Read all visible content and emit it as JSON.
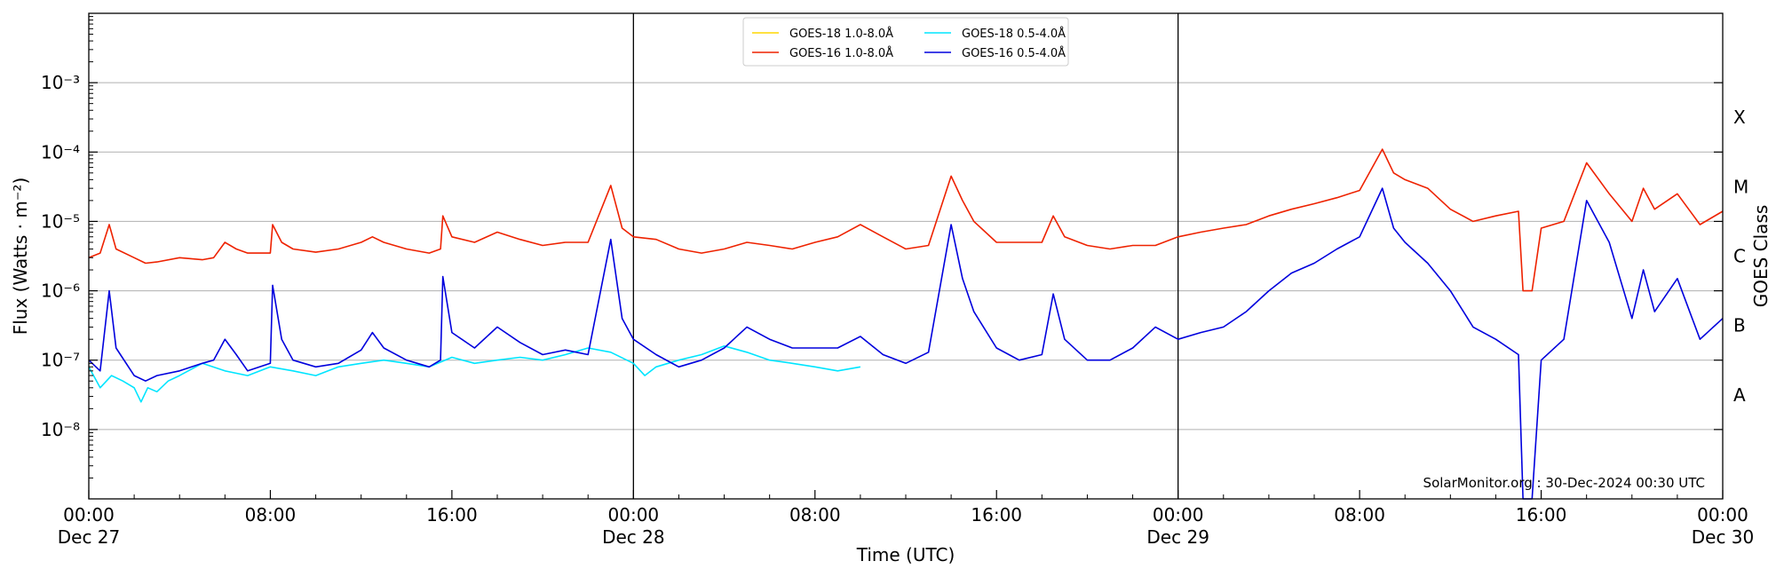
{
  "chart_data": {
    "type": "line",
    "title": "",
    "xlabel": "Time (UTC)",
    "ylabel": "Flux (Watts · m⁻²)",
    "ylabel_right": "GOES Class",
    "credit": "SolarMonitor.org : 30-Dec-2024 00:30 UTC",
    "x_range_hours": [
      0,
      72
    ],
    "x_unit": "hours since 27-Dec-2024 00:00 UTC",
    "ylim": [
      1e-09,
      0.01
    ],
    "yscale": "log",
    "grid": "horizontal at decades",
    "day_lines_hours": [
      24,
      48
    ],
    "x_ticks": [
      {
        "h": 0,
        "time": "00:00",
        "date": "Dec 27"
      },
      {
        "h": 8,
        "time": "08:00",
        "date": ""
      },
      {
        "h": 16,
        "time": "16:00",
        "date": ""
      },
      {
        "h": 24,
        "time": "00:00",
        "date": "Dec 28"
      },
      {
        "h": 32,
        "time": "08:00",
        "date": ""
      },
      {
        "h": 40,
        "time": "16:00",
        "date": ""
      },
      {
        "h": 48,
        "time": "00:00",
        "date": "Dec 29"
      },
      {
        "h": 56,
        "time": "08:00",
        "date": ""
      },
      {
        "h": 64,
        "time": "16:00",
        "date": ""
      },
      {
        "h": 72,
        "time": "00:00",
        "date": "Dec 30"
      }
    ],
    "y_ticks": [
      {
        "exp": -8,
        "label": "10⁻⁸"
      },
      {
        "exp": -7,
        "label": "10⁻⁷"
      },
      {
        "exp": -6,
        "label": "10⁻⁶"
      },
      {
        "exp": -5,
        "label": "10⁻⁵"
      },
      {
        "exp": -4,
        "label": "10⁻⁴"
      },
      {
        "exp": -3,
        "label": "10⁻³"
      }
    ],
    "goes_classes": [
      {
        "label": "A",
        "exp": -7.5
      },
      {
        "label": "B",
        "exp": -6.5
      },
      {
        "label": "C",
        "exp": -5.5
      },
      {
        "label": "M",
        "exp": -4.5
      },
      {
        "label": "X",
        "exp": -3.5
      }
    ],
    "legend": "top-center",
    "series": [
      {
        "name": "GOES-18 1.0-8.0Å",
        "color": "#ffd700",
        "points": []
      },
      {
        "name": "GOES-18 0.5-4.0Å",
        "color": "#00e5ff",
        "points": [
          [
            0,
            8e-08
          ],
          [
            0.5,
            4e-08
          ],
          [
            1,
            6e-08
          ],
          [
            1.5,
            5e-08
          ],
          [
            2,
            4e-08
          ],
          [
            2.3,
            2.5e-08
          ],
          [
            2.6,
            4e-08
          ],
          [
            3,
            3.5e-08
          ],
          [
            3.5,
            5e-08
          ],
          [
            4,
            6e-08
          ],
          [
            5,
            9e-08
          ],
          [
            6,
            7e-08
          ],
          [
            7,
            6e-08
          ],
          [
            8,
            8e-08
          ],
          [
            9,
            7e-08
          ],
          [
            10,
            6e-08
          ],
          [
            11,
            8e-08
          ],
          [
            12,
            9e-08
          ],
          [
            13,
            1e-07
          ],
          [
            14,
            9e-08
          ],
          [
            15,
            8e-08
          ],
          [
            16,
            1.1e-07
          ],
          [
            17,
            9e-08
          ],
          [
            18,
            1e-07
          ],
          [
            19,
            1.1e-07
          ],
          [
            20,
            1e-07
          ],
          [
            21,
            1.2e-07
          ],
          [
            22,
            1.5e-07
          ],
          [
            23,
            1.3e-07
          ],
          [
            24,
            9e-08
          ],
          [
            24.5,
            6e-08
          ],
          [
            25,
            8e-08
          ],
          [
            26,
            1e-07
          ],
          [
            27,
            1.2e-07
          ],
          [
            28,
            1.6e-07
          ],
          [
            29,
            1.3e-07
          ],
          [
            30,
            1e-07
          ],
          [
            31,
            9e-08
          ],
          [
            32,
            8e-08
          ],
          [
            33,
            7e-08
          ],
          [
            34,
            8e-08
          ]
        ]
      },
      {
        "name": "GOES-16 1.0-8.0Å",
        "color": "#ee2200",
        "points": [
          [
            0,
            3e-06
          ],
          [
            0.5,
            3.5e-06
          ],
          [
            0.9,
            9e-06
          ],
          [
            1.2,
            4e-06
          ],
          [
            2,
            3e-06
          ],
          [
            2.5,
            2.5e-06
          ],
          [
            3,
            2.6e-06
          ],
          [
            4,
            3e-06
          ],
          [
            5,
            2.8e-06
          ],
          [
            5.5,
            3e-06
          ],
          [
            6,
            5e-06
          ],
          [
            6.5,
            4e-06
          ],
          [
            7,
            3.5e-06
          ],
          [
            8,
            3.5e-06
          ],
          [
            8.1,
            9e-06
          ],
          [
            8.5,
            5e-06
          ],
          [
            9,
            4e-06
          ],
          [
            10,
            3.6e-06
          ],
          [
            11,
            4e-06
          ],
          [
            12,
            5e-06
          ],
          [
            12.5,
            6e-06
          ],
          [
            13,
            5e-06
          ],
          [
            14,
            4e-06
          ],
          [
            15,
            3.5e-06
          ],
          [
            15.5,
            4e-06
          ],
          [
            15.6,
            1.2e-05
          ],
          [
            16,
            6e-06
          ],
          [
            17,
            5e-06
          ],
          [
            18,
            7e-06
          ],
          [
            19,
            5.5e-06
          ],
          [
            20,
            4.5e-06
          ],
          [
            21,
            5e-06
          ],
          [
            22,
            5e-06
          ],
          [
            23,
            3.3e-05
          ],
          [
            23.5,
            8e-06
          ],
          [
            24,
            6e-06
          ],
          [
            25,
            5.5e-06
          ],
          [
            26,
            4e-06
          ],
          [
            27,
            3.5e-06
          ],
          [
            28,
            4e-06
          ],
          [
            29,
            5e-06
          ],
          [
            30,
            4.5e-06
          ],
          [
            31,
            4e-06
          ],
          [
            32,
            5e-06
          ],
          [
            33,
            6e-06
          ],
          [
            34,
            9e-06
          ],
          [
            35,
            6e-06
          ],
          [
            36,
            4e-06
          ],
          [
            37,
            4.5e-06
          ],
          [
            38,
            4.5e-05
          ],
          [
            38.5,
            2e-05
          ],
          [
            39,
            1e-05
          ],
          [
            40,
            5e-06
          ],
          [
            41,
            5e-06
          ],
          [
            42,
            5e-06
          ],
          [
            42.5,
            1.2e-05
          ],
          [
            43,
            6e-06
          ],
          [
            44,
            4.5e-06
          ],
          [
            45,
            4e-06
          ],
          [
            46,
            4.5e-06
          ],
          [
            47,
            4.5e-06
          ],
          [
            48,
            6e-06
          ],
          [
            49,
            7e-06
          ],
          [
            50,
            8e-06
          ],
          [
            51,
            9e-06
          ],
          [
            52,
            1.2e-05
          ],
          [
            53,
            1.5e-05
          ],
          [
            54,
            1.8e-05
          ],
          [
            55,
            2.2e-05
          ],
          [
            56,
            2.8e-05
          ],
          [
            57,
            0.00011
          ],
          [
            57.5,
            5e-05
          ],
          [
            58,
            4e-05
          ],
          [
            59,
            3e-05
          ],
          [
            60,
            1.5e-05
          ],
          [
            61,
            1e-05
          ],
          [
            62,
            1.2e-05
          ],
          [
            63,
            1.4e-05
          ],
          [
            63.2,
            1e-06
          ],
          [
            63.6,
            1e-06
          ],
          [
            64,
            8e-06
          ],
          [
            65,
            1e-05
          ],
          [
            66,
            7e-05
          ],
          [
            67,
            2.5e-05
          ],
          [
            68,
            1e-05
          ],
          [
            68.5,
            3e-05
          ],
          [
            69,
            1.5e-05
          ],
          [
            70,
            2.5e-05
          ],
          [
            71,
            9e-06
          ],
          [
            72,
            1.4e-05
          ]
        ]
      },
      {
        "name": "GOES-16 0.5-4.0Å",
        "color": "#0000dd",
        "points": [
          [
            0,
            1e-07
          ],
          [
            0.5,
            7e-08
          ],
          [
            0.9,
            1e-06
          ],
          [
            1.2,
            1.5e-07
          ],
          [
            2,
            6e-08
          ],
          [
            2.5,
            5e-08
          ],
          [
            3,
            6e-08
          ],
          [
            4,
            7e-08
          ],
          [
            5,
            9e-08
          ],
          [
            5.5,
            1e-07
          ],
          [
            6,
            2e-07
          ],
          [
            6.5,
            1.2e-07
          ],
          [
            7,
            7e-08
          ],
          [
            8,
            9e-08
          ],
          [
            8.1,
            1.2e-06
          ],
          [
            8.5,
            2e-07
          ],
          [
            9,
            1e-07
          ],
          [
            10,
            8e-08
          ],
          [
            11,
            9e-08
          ],
          [
            12,
            1.4e-07
          ],
          [
            12.5,
            2.5e-07
          ],
          [
            13,
            1.5e-07
          ],
          [
            14,
            1e-07
          ],
          [
            15,
            8e-08
          ],
          [
            15.5,
            1e-07
          ],
          [
            15.6,
            1.6e-06
          ],
          [
            16,
            2.5e-07
          ],
          [
            17,
            1.5e-07
          ],
          [
            18,
            3e-07
          ],
          [
            19,
            1.8e-07
          ],
          [
            20,
            1.2e-07
          ],
          [
            21,
            1.4e-07
          ],
          [
            22,
            1.2e-07
          ],
          [
            23,
            5.5e-06
          ],
          [
            23.5,
            4e-07
          ],
          [
            24,
            2e-07
          ],
          [
            25,
            1.2e-07
          ],
          [
            26,
            8e-08
          ],
          [
            27,
            1e-07
          ],
          [
            28,
            1.5e-07
          ],
          [
            29,
            3e-07
          ],
          [
            30,
            2e-07
          ],
          [
            31,
            1.5e-07
          ],
          [
            32,
            1.5e-07
          ],
          [
            33,
            1.5e-07
          ],
          [
            34,
            2.2e-07
          ],
          [
            35,
            1.2e-07
          ],
          [
            36,
            9e-08
          ],
          [
            37,
            1.3e-07
          ],
          [
            38,
            9e-06
          ],
          [
            38.5,
            1.5e-06
          ],
          [
            39,
            5e-07
          ],
          [
            40,
            1.5e-07
          ],
          [
            41,
            1e-07
          ],
          [
            42,
            1.2e-07
          ],
          [
            42.5,
            9e-07
          ],
          [
            43,
            2e-07
          ],
          [
            44,
            1e-07
          ],
          [
            45,
            1e-07
          ],
          [
            46,
            1.5e-07
          ],
          [
            47,
            3e-07
          ],
          [
            48,
            2e-07
          ],
          [
            49,
            2.5e-07
          ],
          [
            50,
            3e-07
          ],
          [
            51,
            5e-07
          ],
          [
            52,
            1e-06
          ],
          [
            53,
            1.8e-06
          ],
          [
            54,
            2.5e-06
          ],
          [
            55,
            4e-06
          ],
          [
            56,
            6e-06
          ],
          [
            57,
            3e-05
          ],
          [
            57.5,
            8e-06
          ],
          [
            58,
            5e-06
          ],
          [
            59,
            2.5e-06
          ],
          [
            60,
            1e-06
          ],
          [
            61,
            3e-07
          ],
          [
            62,
            2e-07
          ],
          [
            63,
            1.2e-07
          ],
          [
            63.2,
            1e-09
          ],
          [
            63.6,
            1e-09
          ],
          [
            64,
            1e-07
          ],
          [
            65,
            2e-07
          ],
          [
            66,
            2e-05
          ],
          [
            67,
            5e-06
          ],
          [
            68,
            4e-07
          ],
          [
            68.5,
            2e-06
          ],
          [
            69,
            5e-07
          ],
          [
            70,
            1.5e-06
          ],
          [
            71,
            2e-07
          ],
          [
            72,
            4e-07
          ]
        ]
      }
    ]
  }
}
